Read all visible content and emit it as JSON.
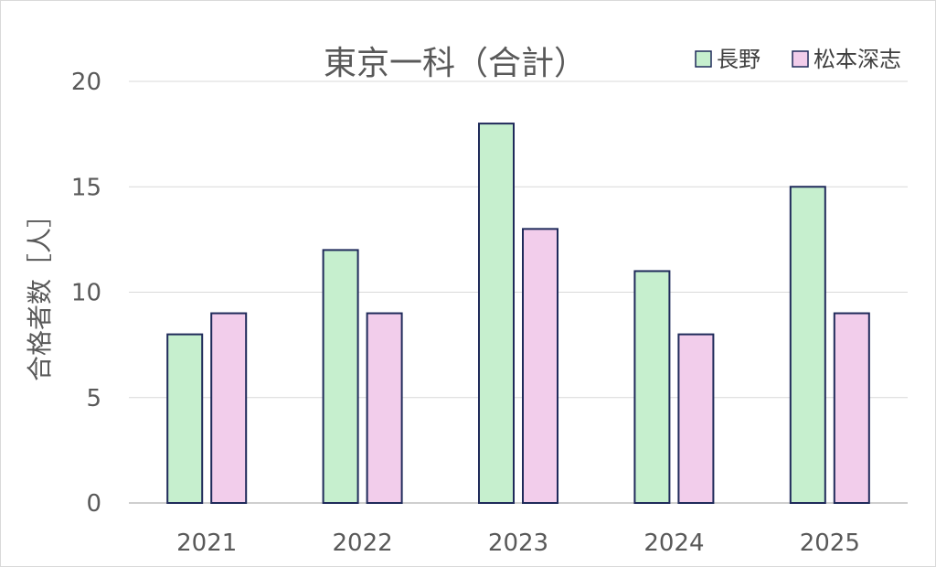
{
  "chart_data": {
    "type": "bar",
    "title": "東京一科（合計）",
    "ylabel": "合格者数［人］",
    "xlabel": "",
    "categories": [
      "2021",
      "2022",
      "2023",
      "2024",
      "2025"
    ],
    "series": [
      {
        "name": "長野",
        "values": [
          8,
          12,
          18,
          11,
          15
        ],
        "color": "#c6efce"
      },
      {
        "name": "松本深志",
        "values": [
          9,
          9,
          13,
          8,
          9
        ],
        "color": "#f2cdeb"
      }
    ],
    "ylim": [
      0,
      20
    ],
    "yticks": [
      0,
      5,
      10,
      15,
      20
    ],
    "grid": true,
    "legend_position": "top-right",
    "bar_border_color": "#1f2a5a"
  }
}
